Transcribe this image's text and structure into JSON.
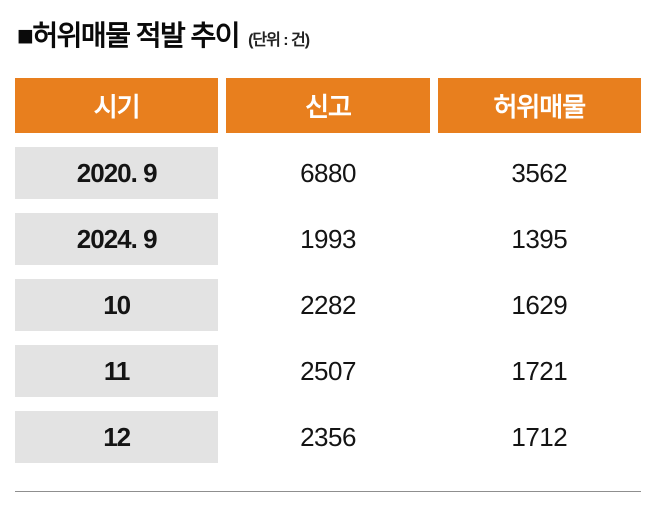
{
  "title": {
    "text": "■허위매물 적발 추이",
    "unit": "(단위 : 건)"
  },
  "colors": {
    "header_bg": "#e87f1e",
    "header_text": "#ffffff",
    "label_bg": "#e3e3e3",
    "body_text": "#141414"
  },
  "chart_data": {
    "type": "table",
    "title": "허위매물 적발 추이",
    "unit_label": "(단위 : 건)",
    "columns": [
      "시기",
      "신고",
      "허위매물"
    ],
    "rows": [
      [
        "2020. 9",
        "6880",
        "3562"
      ],
      [
        "2024. 9",
        "1993",
        "1395"
      ],
      [
        "10",
        "2282",
        "1629"
      ],
      [
        "11",
        "2507",
        "1721"
      ],
      [
        "12",
        "2356",
        "1712"
      ]
    ]
  }
}
